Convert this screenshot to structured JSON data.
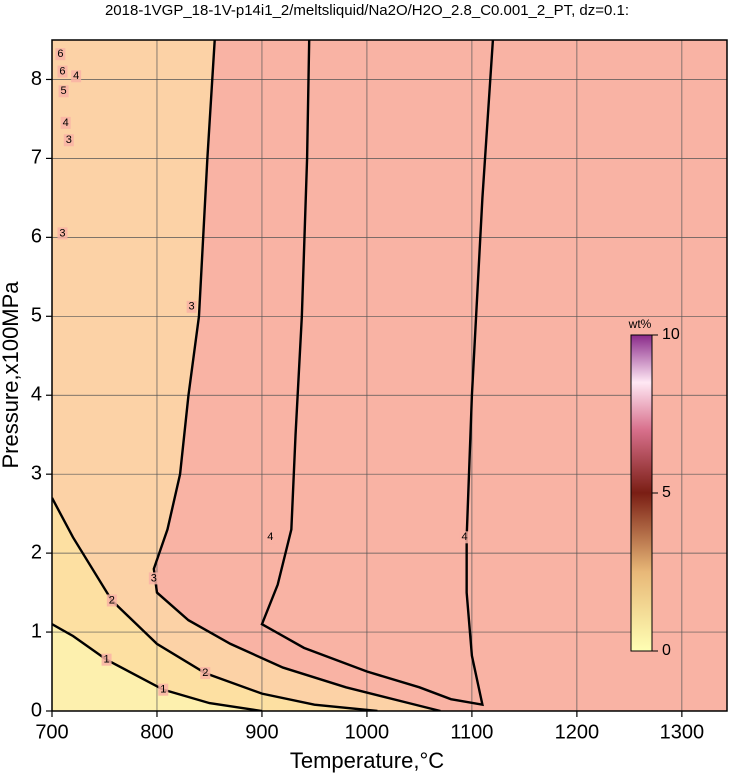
{
  "chart_data": {
    "type": "contour",
    "title": "2018-1VGP_18-1V-p14i1_2/meltsliquid/Na2O/H2O_2.8_C0.001_2_PT, dz=0.1:",
    "x_label": "Temperature,°C",
    "y_label": "Pressure,x100MPa",
    "xlim": [
      700,
      1343
    ],
    "ylim": [
      0,
      8.5
    ],
    "xticks": [
      700,
      800,
      900,
      1000,
      1100,
      1200,
      1300
    ],
    "yticks": [
      0,
      1,
      2,
      3,
      4,
      5,
      6,
      7,
      8
    ],
    "grid": true,
    "background": "#f9b3a4",
    "contours": [
      {
        "level": 3,
        "fill": "#fcd2a6",
        "x": [
          855,
          848,
          840,
          830,
          822,
          810,
          797,
          800,
          830,
          870,
          920,
          980,
          1040,
          1070
        ],
        "y": [
          8.5,
          7.0,
          5.0,
          4.0,
          3.0,
          2.3,
          1.8,
          1.5,
          1.15,
          0.85,
          0.55,
          0.3,
          0.1,
          0
        ]
      },
      {
        "level": 2,
        "fill": "#fde0a2",
        "x": [
          700,
          720,
          757,
          800,
          846,
          900,
          950,
          1010
        ],
        "y": [
          2.7,
          2.2,
          1.4,
          0.85,
          0.48,
          0.22,
          0.08,
          0
        ]
      },
      {
        "level": 1,
        "fill": "#fdf0ae",
        "x": [
          700,
          720,
          752,
          806,
          850,
          900
        ],
        "y": [
          1.1,
          0.95,
          0.65,
          0.27,
          0.1,
          0
        ]
      },
      {
        "level": 4,
        "fill": null,
        "x": [
          945,
          943,
          938,
          932,
          928,
          915,
          900,
          940,
          1000,
          1050,
          1080,
          1110,
          1100,
          1095,
          1095,
          1100,
          1110,
          1120
        ],
        "y": [
          8.5,
          7.0,
          5.0,
          3.5,
          2.3,
          1.6,
          1.1,
          0.8,
          0.5,
          0.3,
          0.15,
          0.08,
          0.7,
          1.5,
          2.2,
          4.0,
          6.5,
          8.5
        ]
      }
    ],
    "contour_labels": [
      {
        "value": 3,
        "x": 833,
        "y": 5.12
      },
      {
        "value": 3,
        "x": 797,
        "y": 1.68
      },
      {
        "value": 4,
        "x": 908,
        "y": 2.2
      },
      {
        "value": 4,
        "x": 1093,
        "y": 2.2
      },
      {
        "value": 2,
        "x": 757,
        "y": 1.4
      },
      {
        "value": 2,
        "x": 846,
        "y": 0.48
      },
      {
        "value": 1,
        "x": 752,
        "y": 0.65
      },
      {
        "value": 1,
        "x": 806,
        "y": 0.27
      },
      {
        "value": 3,
        "x": 710,
        "y": 6.05
      },
      {
        "value": 3,
        "x": 716,
        "y": 7.23
      },
      {
        "value": 4,
        "x": 713,
        "y": 7.45
      },
      {
        "value": 5,
        "x": 711,
        "y": 7.85
      },
      {
        "value": 4,
        "x": 723,
        "y": 8.04
      },
      {
        "value": 6,
        "x": 710,
        "y": 8.1
      },
      {
        "value": 6,
        "x": 708,
        "y": 8.32
      }
    ],
    "colorbar": {
      "label": "wt%",
      "lim": [
        0,
        10
      ],
      "ticks": [
        0,
        5,
        10
      ]
    }
  }
}
